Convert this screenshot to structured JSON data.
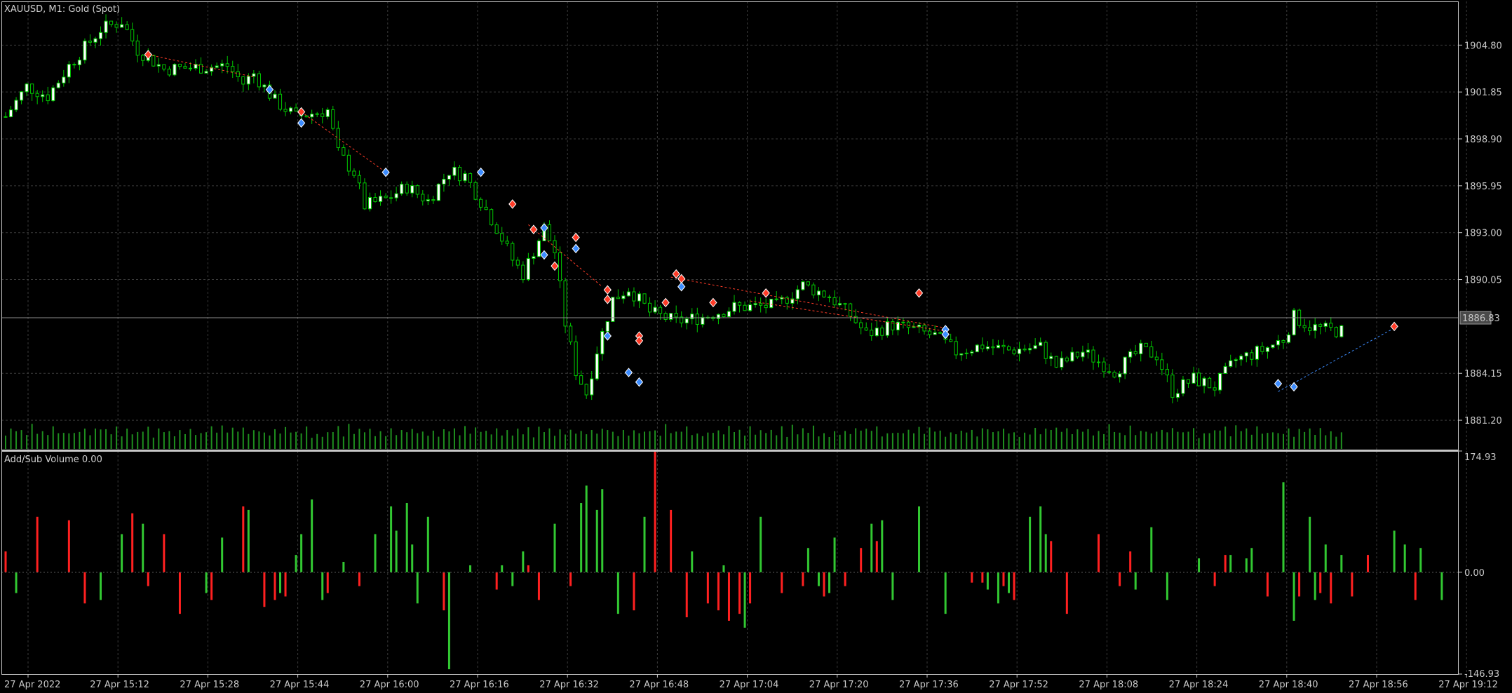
{
  "window": {
    "title": "XAUUSD, M1:  Gold (Spot)",
    "indicator_label": "Add/Sub Volume 0.00"
  },
  "colors": {
    "background": "#000000",
    "grid": "#3a3a3a",
    "frame": "#c8c8c8",
    "bull_body": "#ffffff",
    "bull_wick": "#00c800",
    "bear_body": "#000000",
    "bear_wick": "#00c800",
    "volume": "#1f8f1f",
    "pos_bar": "#32c832",
    "neg_bar": "#ff2020",
    "bid_line": "#8c8c8c",
    "sell_marker": "#ff3c28",
    "buy_marker": "#3c8cff"
  },
  "chart_data": [
    {
      "type": "candlestick",
      "title": "XAUUSD, M1:  Gold (Spot)",
      "ylim": [
        1879.35,
        1907.55
      ],
      "y_ticks": [
        "1904.80",
        "1901.85",
        "1898.90",
        "1895.95",
        "1893.00",
        "1890.05",
        "1884.15",
        "1881.20"
      ],
      "current_price": "1886.83",
      "x_ticks": [
        "27 Apr 2022",
        "27 Apr 15:12",
        "27 Apr 15:28",
        "27 Apr 15:44",
        "27 Apr 16:00",
        "27 Apr 16:16",
        "27 Apr 16:32",
        "27 Apr 16:48",
        "27 Apr 17:04",
        "27 Apr 17:20",
        "27 Apr 17:36",
        "27 Apr 17:52",
        "27 Apr 18:08",
        "27 Apr 18:24",
        "27 Apr 18:40",
        "27 Apr 18:56",
        "27 Apr 19:12"
      ],
      "close_path": [
        [
          0,
          1900.3
        ],
        [
          4,
          1902.2
        ],
        [
          8,
          1901.6
        ],
        [
          12,
          1903.5
        ],
        [
          18,
          1905.8
        ],
        [
          22,
          1906.3
        ],
        [
          25,
          1904.5
        ],
        [
          30,
          1903.3
        ],
        [
          36,
          1903.4
        ],
        [
          42,
          1903.5
        ],
        [
          45,
          1902.4
        ],
        [
          47,
          1903.0
        ],
        [
          51,
          1901.3
        ],
        [
          55,
          1900.3
        ],
        [
          61,
          1900.7
        ],
        [
          63,
          1898.0
        ],
        [
          66,
          1896.8
        ],
        [
          68,
          1894.7
        ],
        [
          72,
          1895.1
        ],
        [
          76,
          1895.9
        ],
        [
          80,
          1895.0
        ],
        [
          84,
          1896.9
        ],
        [
          87,
          1896.6
        ],
        [
          90,
          1895.0
        ],
        [
          93,
          1893.3
        ],
        [
          96,
          1891.3
        ],
        [
          98,
          1890.4
        ],
        [
          102,
          1893.3
        ],
        [
          104,
          1891.8
        ],
        [
          106,
          1887.3
        ],
        [
          108,
          1884.3
        ],
        [
          110,
          1882.9
        ],
        [
          112,
          1885.6
        ],
        [
          115,
          1888.8
        ],
        [
          118,
          1889.5
        ],
        [
          122,
          1888.0
        ],
        [
          127,
          1887.4
        ],
        [
          132,
          1887.7
        ],
        [
          138,
          1888.3
        ],
        [
          146,
          1888.4
        ],
        [
          151,
          1889.7
        ],
        [
          156,
          1889.0
        ],
        [
          160,
          1887.8
        ],
        [
          163,
          1886.6
        ],
        [
          168,
          1887.2
        ],
        [
          172,
          1886.9
        ],
        [
          176,
          1886.5
        ],
        [
          180,
          1885.5
        ],
        [
          185,
          1885.9
        ],
        [
          190,
          1885.6
        ],
        [
          196,
          1885.8
        ],
        [
          199,
          1884.6
        ],
        [
          204,
          1885.5
        ],
        [
          210,
          1884.3
        ],
        [
          215,
          1885.6
        ],
        [
          218,
          1885.3
        ],
        [
          221,
          1883.0
        ],
        [
          225,
          1883.8
        ],
        [
          229,
          1883.3
        ],
        [
          233,
          1885.0
        ],
        [
          238,
          1885.6
        ],
        [
          242,
          1886.3
        ],
        [
          244,
          1887.7
        ],
        [
          247,
          1887.1
        ],
        [
          250,
          1886.9
        ],
        [
          253,
          1886.8
        ]
      ],
      "volume_pattern": [
        0.45,
        0.7,
        0.55,
        0.85,
        0.4,
        1.0,
        0.6,
        0.75,
        0.5,
        0.9,
        0.35,
        0.65
      ]
    },
    {
      "type": "bar",
      "title": "Add/Sub Volume 0.00",
      "ylim": [
        -146.93,
        174.93
      ],
      "y_ticks": [
        "174.93",
        "0.00",
        "-146.93"
      ],
      "bars": [
        [
          0,
          30
        ],
        [
          2,
          -30
        ],
        [
          6,
          80
        ],
        [
          12,
          75
        ],
        [
          15,
          -45
        ],
        [
          18,
          -40
        ],
        [
          22,
          55
        ],
        [
          24,
          85
        ],
        [
          26,
          70
        ],
        [
          27,
          -20
        ],
        [
          30,
          55
        ],
        [
          33,
          -60
        ],
        [
          38,
          -30
        ],
        [
          39,
          -40
        ],
        [
          41,
          50
        ],
        [
          45,
          95
        ],
        [
          46,
          90
        ],
        [
          49,
          -50
        ],
        [
          51,
          -40
        ],
        [
          52,
          -30
        ],
        [
          53,
          -35
        ],
        [
          55,
          25
        ],
        [
          56,
          55
        ],
        [
          58,
          105
        ],
        [
          60,
          -40
        ],
        [
          61,
          -30
        ],
        [
          64,
          15
        ],
        [
          67,
          -20
        ],
        [
          70,
          55
        ],
        [
          73,
          95
        ],
        [
          74,
          60
        ],
        [
          76,
          100
        ],
        [
          77,
          40
        ],
        [
          78,
          -45
        ],
        [
          80,
          80
        ],
        [
          83,
          -55
        ],
        [
          84,
          -140
        ],
        [
          88,
          10
        ],
        [
          93,
          -25
        ],
        [
          94,
          10
        ],
        [
          96,
          -20
        ],
        [
          98,
          30
        ],
        [
          99,
          10
        ],
        [
          101,
          -40
        ],
        [
          104,
          70
        ],
        [
          107,
          -20
        ],
        [
          109,
          100
        ],
        [
          110,
          125
        ],
        [
          112,
          90
        ],
        [
          113,
          120
        ],
        [
          116,
          -60
        ],
        [
          119,
          -55
        ],
        [
          121,
          80
        ],
        [
          123,
          175
        ],
        [
          126,
          90
        ],
        [
          129,
          -65
        ],
        [
          130,
          30
        ],
        [
          133,
          -45
        ],
        [
          135,
          -55
        ],
        [
          136,
          10
        ],
        [
          137,
          -70
        ],
        [
          139,
          -60
        ],
        [
          140,
          -80
        ],
        [
          141,
          -45
        ],
        [
          143,
          80
        ],
        [
          147,
          -30
        ],
        [
          151,
          -20
        ],
        [
          152,
          35
        ],
        [
          154,
          -20
        ],
        [
          155,
          -35
        ],
        [
          156,
          -30
        ],
        [
          157,
          50
        ],
        [
          159,
          -20
        ],
        [
          162,
          35
        ],
        [
          164,
          70
        ],
        [
          165,
          45
        ],
        [
          166,
          75
        ],
        [
          168,
          -40
        ],
        [
          173,
          95
        ],
        [
          178,
          -60
        ],
        [
          183,
          -15
        ],
        [
          185,
          -15
        ],
        [
          186,
          -25
        ],
        [
          188,
          -45
        ],
        [
          189,
          -20
        ],
        [
          190,
          -30
        ],
        [
          191,
          -40
        ],
        [
          194,
          80
        ],
        [
          196,
          95
        ],
        [
          197,
          55
        ],
        [
          198,
          45
        ],
        [
          201,
          -60
        ],
        [
          207,
          55
        ],
        [
          211,
          -20
        ],
        [
          213,
          30
        ],
        [
          214,
          -25
        ],
        [
          217,
          65
        ],
        [
          220,
          -40
        ],
        [
          226,
          20
        ],
        [
          229,
          -20
        ],
        [
          231,
          25
        ],
        [
          232,
          25
        ],
        [
          235,
          20
        ],
        [
          236,
          35
        ],
        [
          239,
          -35
        ],
        [
          242,
          130
        ],
        [
          244,
          -70
        ],
        [
          245,
          -35
        ],
        [
          247,
          80
        ],
        [
          248,
          -40
        ],
        [
          249,
          -30
        ],
        [
          250,
          40
        ],
        [
          251,
          -45
        ],
        [
          253,
          25
        ],
        [
          255,
          -35
        ],
        [
          258,
          25
        ],
        [
          263,
          60
        ],
        [
          265,
          40
        ],
        [
          267,
          -40
        ],
        [
          268,
          35
        ],
        [
          272,
          -40
        ]
      ]
    }
  ]
}
